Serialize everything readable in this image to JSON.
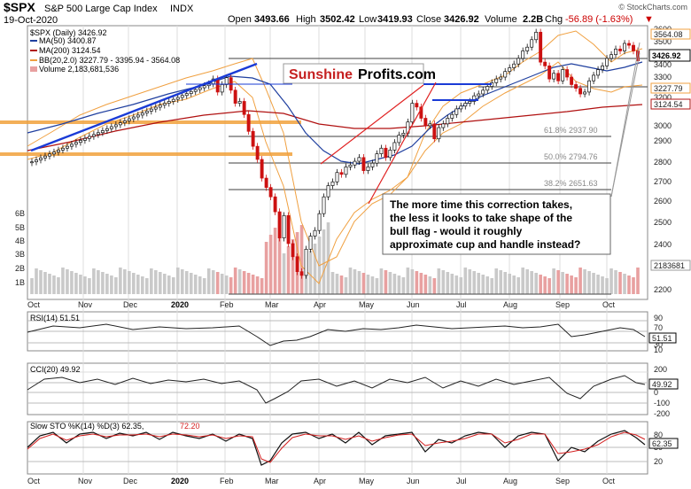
{
  "header": {
    "symbol": "$SPX",
    "name": "S&P 500 Large Cap Index",
    "exchange": "INDX",
    "date": "19-Oct-2020",
    "ohlc": {
      "open_label": "Open",
      "open": "3493.66",
      "high_label": "High",
      "high": "3502.42",
      "low_label": "Low",
      "low": "3419.93",
      "close_label": "Close",
      "close": "3426.92",
      "volume_label": "Volume",
      "volume": "2.2B",
      "chg_label": "Chg",
      "chg": "-56.89 (-1.63%)",
      "chg_arrow": "▼"
    },
    "credit": "© StockCharts.com"
  },
  "legend": {
    "main": "$SPX (Daily) 3426.92",
    "ma50": "MA(50) 3400.87",
    "ma200": "MA(200) 3124.54",
    "bb": "BB(20,2.0) 3227.79 - 3395.94 - 3564.08",
    "volume": "Volume 2,183,681,536"
  },
  "watermark": {
    "part1": "Sunshine",
    "part2": "Profits.com"
  },
  "annotation": [
    "The more time this correction takes,",
    "the less it looks to take shape of the",
    "bull flag - would it roughly",
    "approximate cup and handle instead?"
  ],
  "fib_labels": [
    "61.8% 2937.90",
    "50.0% 2794.76",
    "38.2% 2651.63"
  ],
  "price_axis": {
    "ticks": [
      "3600",
      "3500",
      "3400",
      "3300",
      "3200",
      "3000",
      "2900",
      "2800",
      "2700",
      "2600",
      "2500",
      "2400",
      "2300",
      "2200"
    ],
    "tags": [
      "3564.08",
      "3426.92",
      "3227.79",
      "3124.54"
    ]
  },
  "volume_axis": {
    "ticks": [
      "6B",
      "5B",
      "4B",
      "3B",
      "2B",
      "1B"
    ],
    "tag": "2183681"
  },
  "time_axis": [
    "Oct",
    "Nov",
    "Dec",
    "2020",
    "Feb",
    "Mar",
    "Apr",
    "May",
    "Jun",
    "Jul",
    "Aug",
    "Sep",
    "Oct"
  ],
  "rsi": {
    "label": "RSI(14) 51.51",
    "ticks": [
      "90",
      "70",
      "30",
      "10"
    ],
    "tag": "51.51"
  },
  "cci": {
    "label": "CCI(20) 49.92",
    "ticks": [
      "200",
      "100",
      "0",
      "-100",
      "-200"
    ],
    "tag": "49.92"
  },
  "sto": {
    "label_a": "Slow STO %K(14) %D(3) 62.35, ",
    "label_b": "72.20",
    "ticks": [
      "80",
      "50",
      "20"
    ],
    "tag": "62.35"
  },
  "colors": {
    "bb": "#f0a040",
    "ma50": "#1f3f9f",
    "ma200": "#b01010",
    "up": "#111111",
    "down": "#cc1111",
    "volume": "#e8a0a0",
    "orange": "#f2a23c",
    "blue_line": "#1a3bd6",
    "red_line": "#e02020"
  },
  "chart_data": {
    "type": "candlestick",
    "ylim": [
      2180,
      3610
    ],
    "approx_closes": [
      2887,
      2897,
      2908,
      2918,
      2929,
      2939,
      2950,
      2960,
      2970,
      2981,
      2991,
      3002,
      3012,
      3023,
      3033,
      3043,
      3054,
      3064,
      3075,
      3085,
      3096,
      3106,
      3117,
      3127,
      3137,
      3148,
      3158,
      3169,
      3179,
      3190,
      3200,
      3210,
      3221,
      3231,
      3242,
      3252,
      3263,
      3273,
      3283,
      3294,
      3304,
      3330,
      3260,
      3300,
      3337,
      3270,
      3200,
      3210,
      3140,
      3050,
      2970,
      2900,
      2800,
      2750,
      2700,
      2620,
      2480,
      2600,
      2450,
      2380,
      2300,
      2280,
      2420,
      2490,
      2520,
      2610,
      2700,
      2760,
      2780,
      2830,
      2820,
      2860,
      2870,
      2890,
      2910,
      2840,
      2860,
      2880,
      2930,
      2960,
      2910,
      2950,
      2990,
      3030,
      3040,
      3100,
      3200,
      3180,
      3120,
      3080,
      3090,
      3010,
      3070,
      3090,
      3120,
      3140,
      3170,
      3185,
      3200,
      3210,
      3240,
      3250,
      3270,
      3290,
      3310,
      3330,
      3340,
      3370,
      3390,
      3410,
      3440,
      3480,
      3500,
      3540,
      3580,
      3420,
      3400,
      3330,
      3360,
      3320,
      3380,
      3340,
      3300,
      3280,
      3250,
      3260,
      3320,
      3350,
      3380,
      3400,
      3440,
      3460,
      3490,
      3480,
      3520,
      3510,
      3480,
      3427
    ]
  }
}
